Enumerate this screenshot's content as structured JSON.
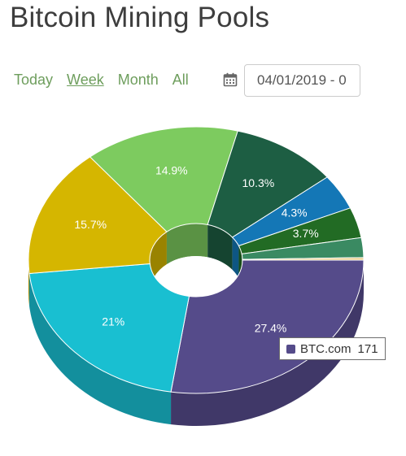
{
  "header": {
    "title": "Bitcoin Mining Pools"
  },
  "range": {
    "links": [
      "Today",
      "Week",
      "Month",
      "All"
    ],
    "active": "Week"
  },
  "date_range": {
    "value": "04/01/2019 - 0"
  },
  "tooltip": {
    "name": "BTC.com",
    "value": "171",
    "color": "#554b8a"
  },
  "chart_data": {
    "type": "pie",
    "variant": "3d-donut",
    "slices": [
      {
        "label": "27.4%",
        "value": 27.4,
        "color": "#554b8a"
      },
      {
        "label": "21%",
        "value": 21.0,
        "color": "#19bfd1"
      },
      {
        "label": "15.7%",
        "value": 15.7,
        "color": "#d5b600"
      },
      {
        "label": "14.9%",
        "value": 14.9,
        "color": "#7dcb5f"
      },
      {
        "label": "10.3%",
        "value": 10.3,
        "color": "#1d5e43"
      },
      {
        "label": "4.3%",
        "value": 4.3,
        "color": "#1477b6"
      },
      {
        "label": "3.7%",
        "value": 3.7,
        "color": "#226b24"
      },
      {
        "label": "",
        "value": 2.4,
        "color": "#3a8a62"
      },
      {
        "label": "",
        "value": 0.3,
        "color": "#e8ce8a"
      }
    ],
    "start_angle_deg": 0,
    "legend": "none"
  }
}
